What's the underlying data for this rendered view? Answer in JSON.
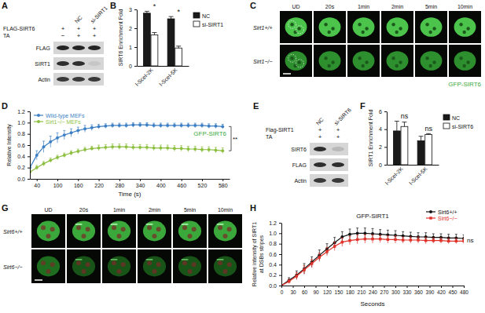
{
  "panel_labels": [
    "A",
    "B",
    "C",
    "D",
    "E",
    "F",
    "G",
    "H"
  ],
  "blots": [
    {
      "columns": [
        null,
        "NC",
        "si-SIRT1"
      ],
      "rows": [
        {
          "label": "FLAG-SIRT6",
          "marks": [
            "+",
            "+",
            "+"
          ]
        },
        {
          "label": "TA",
          "marks": [
            "−",
            "+",
            "+"
          ]
        }
      ],
      "bands": [
        "FLAG",
        "SIRT1",
        "Actin"
      ]
    },
    {
      "columns": [
        "NC",
        "si-SIRT6"
      ],
      "rows": [
        {
          "label": "Flag-SIRT1",
          "marks": [
            "+",
            "+"
          ]
        },
        {
          "label": "TA",
          "marks": [
            "+",
            "+"
          ]
        }
      ],
      "bands": [
        "SIRT6",
        "FLAG",
        "Actin"
      ]
    }
  ],
  "images": [
    {
      "columns": [
        "UD",
        "20s",
        "1min",
        "2min",
        "5min",
        "10min"
      ],
      "rows": [
        "Sirt1+/+",
        "Sirt1−/−"
      ],
      "label": "GFP-SIRT6"
    },
    {
      "columns": [
        "UD",
        "20s",
        "1min",
        "2min",
        "5min",
        "10min"
      ],
      "rows": [
        "Sirt6+/+",
        "Sirt6−/−"
      ]
    }
  ],
  "chart_data": [
    {
      "type": "bar",
      "y_label": "SIRT6 Enrichment Fold",
      "categories": [
        "I-SceI-2K",
        "I-SceI-5K"
      ],
      "series": [
        {
          "name": "NC",
          "color": "#1a1a1a",
          "values": [
            2.8,
            2.5
          ],
          "errors": [
            0.1,
            0.12
          ]
        },
        {
          "name": "si-SIRT1",
          "color": "#ffffff",
          "values": [
            1.65,
            0.95
          ],
          "errors": [
            0.12,
            0.1
          ]
        }
      ],
      "ylim": [
        0,
        3
      ],
      "yticks": [
        0,
        1,
        2,
        3
      ],
      "annotations": [
        "*",
        "*"
      ],
      "legend": "right"
    },
    {
      "type": "line",
      "title": "GFP-SIRT6",
      "y_label": "Relative Intensity",
      "x_label": "Time (s)",
      "x": [
        20,
        40,
        60,
        80,
        100,
        120,
        140,
        160,
        180,
        200,
        220,
        240,
        260,
        280,
        300,
        320,
        340,
        360,
        380,
        400,
        420,
        440,
        460,
        480,
        500,
        520,
        540,
        560,
        580
      ],
      "series": [
        {
          "name": "Wild-type MEFs",
          "color": "#3c7fc4",
          "marker": "circle",
          "values": [
            0.2,
            0.42,
            0.57,
            0.66,
            0.73,
            0.78,
            0.82,
            0.86,
            0.89,
            0.91,
            0.93,
            0.94,
            0.95,
            0.95,
            0.95,
            0.96,
            0.96,
            0.96,
            0.95,
            0.95,
            0.95,
            0.95,
            0.95,
            0.95,
            0.95,
            0.95,
            0.94,
            0.94,
            0.93
          ],
          "errors": [
            0.05,
            0.08,
            0.1,
            0.1,
            0.09,
            0.08,
            0.07,
            0.06,
            0.06,
            0.05,
            0.04,
            0.04,
            0.04,
            0.04,
            0.04,
            0.04,
            0.04,
            0.04,
            0.04,
            0.04,
            0.04,
            0.04,
            0.04,
            0.04,
            0.04,
            0.04,
            0.04,
            0.04,
            0.04
          ]
        },
        {
          "name": "Sirt1−/− MEFs",
          "color": "#8cbf3f",
          "marker": "circle",
          "values": [
            0.12,
            0.2,
            0.27,
            0.33,
            0.38,
            0.42,
            0.46,
            0.49,
            0.52,
            0.54,
            0.55,
            0.56,
            0.57,
            0.57,
            0.57,
            0.56,
            0.56,
            0.56,
            0.55,
            0.55,
            0.55,
            0.54,
            0.54,
            0.53,
            0.53,
            0.52,
            0.52,
            0.51,
            0.5
          ],
          "errors": [
            0.04,
            0.04,
            0.04,
            0.04,
            0.04,
            0.04,
            0.04,
            0.04,
            0.04,
            0.04,
            0.05,
            0.05,
            0.05,
            0.05,
            0.05,
            0.05,
            0.05,
            0.05,
            0.05,
            0.05,
            0.05,
            0.05,
            0.05,
            0.05,
            0.05,
            0.05,
            0.05,
            0.05,
            0.05
          ]
        }
      ],
      "xlim": [
        20,
        600
      ],
      "xticks": [
        40,
        100,
        160,
        220,
        280,
        340,
        400,
        460,
        520,
        580
      ],
      "ylim": [
        0,
        1.2
      ],
      "yticks": [
        {
          "value": 0,
          "label": "0.0"
        },
        0.2,
        0.4,
        0.6,
        0.8,
        {
          "value": 1,
          "label": "1.0"
        },
        1.2
      ],
      "annotations": [
        "**"
      ],
      "legend": "top-left"
    },
    {
      "type": "bar",
      "y_label": "SIRT1 Enrichment Fold",
      "categories": [
        "I-SceI-2K",
        "I-SceI-5K"
      ],
      "series": [
        {
          "name": "NC",
          "color": "#1a1a1a",
          "values": [
            3.8,
            2.7
          ],
          "errors": [
            1.1,
            0.5
          ]
        },
        {
          "name": "si-SIRT6",
          "color": "#ffffff",
          "values": [
            4.3,
            3.4
          ],
          "errors": [
            0.5,
            0.1
          ]
        }
      ],
      "ylim": [
        0,
        6
      ],
      "yticks": [
        0,
        2,
        4,
        6
      ],
      "annotations": [
        "ns",
        "ns"
      ],
      "legend": "right"
    },
    {
      "type": "line",
      "title": "GFP-SIRT1",
      "y_label": [
        "Relative intensity of SIRT1",
        "at DSBs stripes"
      ],
      "x_label": "Seconds",
      "x": [
        0,
        20,
        40,
        60,
        80,
        100,
        120,
        140,
        160,
        180,
        200,
        220,
        240,
        260,
        280,
        300,
        320,
        340,
        360,
        380,
        400,
        420,
        440,
        460,
        480
      ],
      "series": [
        {
          "name": "Sirt6+/+",
          "color": "#111111",
          "marker": "circle",
          "values": [
            0,
            0.1,
            0.2,
            0.32,
            0.45,
            0.58,
            0.7,
            0.82,
            0.93,
            0.98,
            1.0,
            1.0,
            0.99,
            0.98,
            0.97,
            0.96,
            0.95,
            0.94,
            0.93,
            0.93,
            0.92,
            0.92,
            0.91,
            0.91,
            0.9
          ],
          "errors": [
            0,
            0.05,
            0.08,
            0.1,
            0.1,
            0.1,
            0.1,
            0.1,
            0.1,
            0.1,
            0.1,
            0.1,
            0.1,
            0.09,
            0.09,
            0.09,
            0.08,
            0.08,
            0.08,
            0.08,
            0.07,
            0.07,
            0.07,
            0.07,
            0.07
          ]
        },
        {
          "name": "Sirt6−/−",
          "color": "#e0322a",
          "marker": "square",
          "values": [
            0,
            0.08,
            0.18,
            0.3,
            0.42,
            0.54,
            0.65,
            0.75,
            0.83,
            0.86,
            0.88,
            0.89,
            0.89,
            0.89,
            0.88,
            0.88,
            0.87,
            0.87,
            0.87,
            0.86,
            0.86,
            0.86,
            0.85,
            0.85,
            0.85
          ],
          "errors": [
            0,
            0.04,
            0.07,
            0.08,
            0.08,
            0.08,
            0.08,
            0.08,
            0.08,
            0.08,
            0.08,
            0.08,
            0.08,
            0.07,
            0.07,
            0.07,
            0.06,
            0.06,
            0.06,
            0.06,
            0.05,
            0.05,
            0.05,
            0.05,
            0.05
          ]
        }
      ],
      "xlim": [
        0,
        480
      ],
      "xticks": [
        0,
        30,
        60,
        90,
        120,
        150,
        180,
        210,
        240,
        270,
        300,
        330,
        360,
        390,
        420,
        450,
        480
      ],
      "ylim": [
        0,
        1.2
      ],
      "yticks": [
        {
          "value": 0,
          "label": "0.0"
        },
        0.2,
        0.4,
        0.6,
        0.8,
        {
          "value": 1,
          "label": "1.0"
        },
        1.2
      ],
      "annotations": [
        "ns"
      ],
      "legend": "top-right"
    }
  ]
}
